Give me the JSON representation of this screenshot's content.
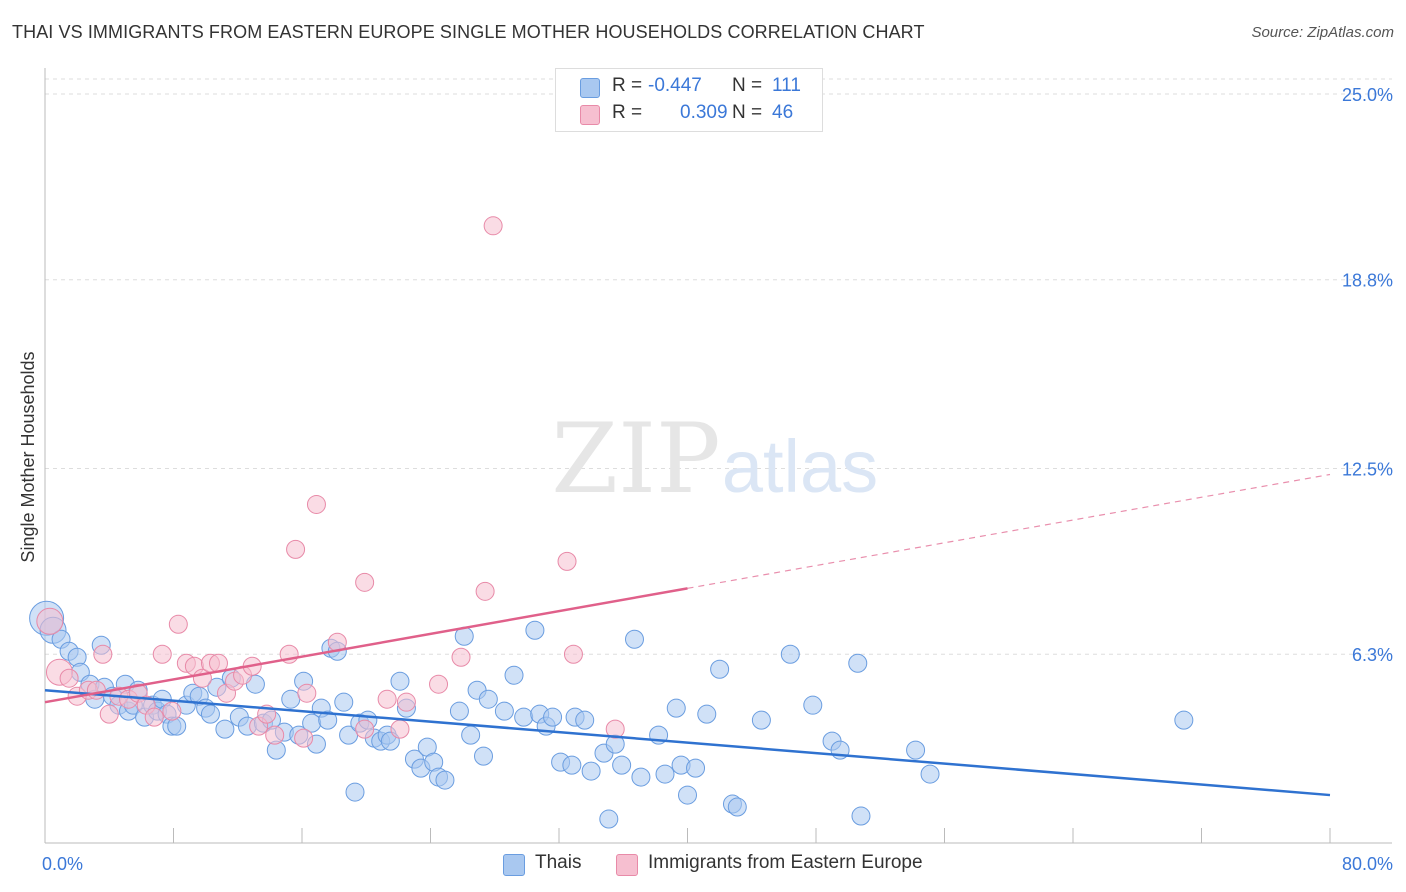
{
  "title": "THAI VS IMMIGRANTS FROM EASTERN EUROPE SINGLE MOTHER HOUSEHOLDS CORRELATION CHART",
  "source": "Source: ZipAtlas.com",
  "watermark": {
    "zip": "ZIP",
    "atlas": "atlas"
  },
  "legend": {
    "rows": [
      {
        "r_label": "R =",
        "r_value": "-0.447",
        "n_label": "N =",
        "n_value": "111"
      },
      {
        "r_label": "R =",
        "r_value": "0.309",
        "n_label": "N =",
        "n_value": "46"
      }
    ]
  },
  "colors": {
    "series_blue_fill": "#a9c8f0",
    "series_blue_stroke": "#6a9de0",
    "trend_blue": "#2f72d0",
    "series_pink_fill": "#f6bfd0",
    "series_pink_stroke": "#e88aa8",
    "trend_pink": "#e0608a",
    "axis_label": "#3b78d8",
    "grid": "#dddddd"
  },
  "chart_data": {
    "type": "scatter",
    "title": "THAI VS IMMIGRANTS FROM EASTERN EUROPE SINGLE MOTHER HOUSEHOLDS CORRELATION CHART",
    "xlabel": "",
    "ylabel": "Single Mother Households",
    "xlim": [
      0,
      80
    ],
    "ylim": [
      0,
      25.5
    ],
    "x_tick_labels": [
      "0.0%",
      "80.0%"
    ],
    "y_ticks": [
      6.3,
      12.5,
      18.8,
      25.0
    ],
    "y_tick_labels": [
      "6.3%",
      "12.5%",
      "18.8%",
      "25.0%"
    ],
    "grid": true,
    "series": [
      {
        "name": "Thais",
        "trend": {
          "x0": 0,
          "y0": 5.1,
          "x1": 80,
          "y1": 1.6
        },
        "points": [
          [
            0.1,
            7.5,
            3
          ],
          [
            0.5,
            7.1,
            2
          ],
          [
            1.0,
            6.8,
            1
          ],
          [
            1.5,
            6.4,
            1
          ],
          [
            2.0,
            6.2,
            1
          ],
          [
            2.2,
            5.7,
            1
          ],
          [
            2.8,
            5.3,
            1
          ],
          [
            3.1,
            4.8,
            1
          ],
          [
            3.5,
            6.6,
            1
          ],
          [
            3.7,
            5.2,
            1
          ],
          [
            4.2,
            4.9,
            1
          ],
          [
            4.6,
            4.6,
            1
          ],
          [
            5.0,
            5.3,
            1
          ],
          [
            5.2,
            4.4,
            1
          ],
          [
            5.5,
            4.6,
            1
          ],
          [
            5.8,
            5.1,
            1
          ],
          [
            6.2,
            4.2,
            1
          ],
          [
            6.7,
            4.6,
            1
          ],
          [
            7.0,
            4.4,
            1
          ],
          [
            7.3,
            4.8,
            1
          ],
          [
            7.6,
            4.3,
            1
          ],
          [
            7.9,
            3.9,
            1
          ],
          [
            8.2,
            3.9,
            1
          ],
          [
            8.8,
            4.6,
            1
          ],
          [
            9.2,
            5.0,
            1
          ],
          [
            9.6,
            4.9,
            1
          ],
          [
            10.0,
            4.5,
            1
          ],
          [
            10.3,
            4.3,
            1
          ],
          [
            10.7,
            5.2,
            1
          ],
          [
            11.2,
            3.8,
            1
          ],
          [
            11.6,
            5.5,
            1
          ],
          [
            12.1,
            4.2,
            1
          ],
          [
            12.6,
            3.9,
            1
          ],
          [
            13.1,
            5.3,
            1
          ],
          [
            13.6,
            4.0,
            1
          ],
          [
            14.1,
            4.1,
            1
          ],
          [
            14.4,
            3.1,
            1
          ],
          [
            14.9,
            3.7,
            1
          ],
          [
            15.3,
            4.8,
            1
          ],
          [
            15.8,
            3.6,
            1
          ],
          [
            16.1,
            5.4,
            1
          ],
          [
            16.6,
            4.0,
            1
          ],
          [
            16.9,
            3.3,
            1
          ],
          [
            17.2,
            4.5,
            1
          ],
          [
            17.6,
            4.1,
            1
          ],
          [
            17.8,
            6.5,
            1
          ],
          [
            18.2,
            6.4,
            1
          ],
          [
            18.6,
            4.7,
            1
          ],
          [
            18.9,
            3.6,
            1
          ],
          [
            19.3,
            1.7,
            1
          ],
          [
            19.6,
            4.0,
            1
          ],
          [
            20.1,
            4.1,
            1
          ],
          [
            20.5,
            3.5,
            1
          ],
          [
            20.9,
            3.4,
            1
          ],
          [
            21.3,
            3.6,
            1
          ],
          [
            21.5,
            3.4,
            1
          ],
          [
            22.1,
            5.4,
            1
          ],
          [
            22.5,
            4.5,
            1
          ],
          [
            23.0,
            2.8,
            1
          ],
          [
            23.4,
            2.5,
            1
          ],
          [
            23.8,
            3.2,
            1
          ],
          [
            24.2,
            2.7,
            1
          ],
          [
            24.5,
            2.2,
            1
          ],
          [
            24.9,
            2.1,
            1
          ],
          [
            25.8,
            4.4,
            1
          ],
          [
            26.1,
            6.9,
            1
          ],
          [
            26.5,
            3.6,
            1
          ],
          [
            26.9,
            5.1,
            1
          ],
          [
            27.3,
            2.9,
            1
          ],
          [
            27.6,
            4.8,
            1
          ],
          [
            28.6,
            4.4,
            1
          ],
          [
            29.2,
            5.6,
            1
          ],
          [
            29.8,
            4.2,
            1
          ],
          [
            30.5,
            7.1,
            1
          ],
          [
            30.8,
            4.3,
            1
          ],
          [
            31.2,
            3.9,
            1
          ],
          [
            31.6,
            4.2,
            1
          ],
          [
            32.1,
            2.7,
            1
          ],
          [
            32.8,
            2.6,
            1
          ],
          [
            33.0,
            4.2,
            1
          ],
          [
            33.6,
            4.1,
            1
          ],
          [
            34.0,
            2.4,
            1
          ],
          [
            34.8,
            3.0,
            1
          ],
          [
            35.1,
            0.8,
            1
          ],
          [
            35.5,
            3.3,
            1
          ],
          [
            35.9,
            2.6,
            1
          ],
          [
            36.7,
            6.8,
            1
          ],
          [
            37.1,
            2.2,
            1
          ],
          [
            38.2,
            3.6,
            1
          ],
          [
            38.6,
            2.3,
            1
          ],
          [
            39.3,
            4.5,
            1
          ],
          [
            39.6,
            2.6,
            1
          ],
          [
            40.0,
            1.6,
            1
          ],
          [
            40.5,
            2.5,
            1
          ],
          [
            41.2,
            4.3,
            1
          ],
          [
            42.0,
            5.8,
            1
          ],
          [
            42.8,
            1.3,
            1
          ],
          [
            43.1,
            1.2,
            1
          ],
          [
            44.6,
            4.1,
            1
          ],
          [
            46.4,
            6.3,
            1
          ],
          [
            47.8,
            4.6,
            1
          ],
          [
            49.0,
            3.4,
            1
          ],
          [
            49.5,
            3.1,
            1
          ],
          [
            50.6,
            6.0,
            1
          ],
          [
            50.8,
            0.9,
            1
          ],
          [
            54.2,
            3.1,
            1
          ],
          [
            55.1,
            2.3,
            1
          ],
          [
            70.9,
            4.1,
            1
          ]
        ]
      },
      {
        "name": "Immigrants from Eastern Europe",
        "trend": {
          "x0": 0,
          "y0": 4.7,
          "x1": 40,
          "y1": 8.5,
          "dashed_to": {
            "x": 80,
            "y": 12.3
          }
        },
        "points": [
          [
            0.3,
            7.4,
            2
          ],
          [
            0.9,
            5.7,
            2
          ],
          [
            1.5,
            5.5,
            1
          ],
          [
            2.0,
            4.9,
            1
          ],
          [
            2.7,
            5.1,
            1
          ],
          [
            3.2,
            5.1,
            1
          ],
          [
            3.6,
            6.3,
            1
          ],
          [
            4.0,
            4.3,
            1
          ],
          [
            4.6,
            4.9,
            1
          ],
          [
            5.2,
            4.8,
            1
          ],
          [
            5.8,
            5.0,
            1
          ],
          [
            6.3,
            4.6,
            1
          ],
          [
            6.8,
            4.2,
            1
          ],
          [
            7.3,
            6.3,
            1
          ],
          [
            7.9,
            4.4,
            1
          ],
          [
            8.3,
            7.3,
            1
          ],
          [
            8.8,
            6.0,
            1
          ],
          [
            9.3,
            5.9,
            1
          ],
          [
            9.8,
            5.5,
            1
          ],
          [
            10.3,
            6.0,
            1
          ],
          [
            10.8,
            6.0,
            1
          ],
          [
            11.3,
            5.0,
            1
          ],
          [
            11.8,
            5.4,
            1
          ],
          [
            12.3,
            5.6,
            1
          ],
          [
            12.9,
            5.9,
            1
          ],
          [
            13.3,
            3.9,
            1
          ],
          [
            13.8,
            4.3,
            1
          ],
          [
            14.3,
            3.6,
            1
          ],
          [
            15.2,
            6.3,
            1
          ],
          [
            15.6,
            9.8,
            1
          ],
          [
            16.1,
            3.5,
            1
          ],
          [
            16.3,
            5.0,
            1
          ],
          [
            16.9,
            11.3,
            1
          ],
          [
            18.2,
            6.7,
            1
          ],
          [
            19.9,
            3.8,
            1
          ],
          [
            19.9,
            8.7,
            1
          ],
          [
            21.3,
            4.8,
            1
          ],
          [
            22.1,
            3.8,
            1
          ],
          [
            22.5,
            4.7,
            1
          ],
          [
            24.5,
            5.3,
            1
          ],
          [
            25.9,
            6.2,
            1
          ],
          [
            27.4,
            8.4,
            1
          ],
          [
            27.9,
            20.6,
            1
          ],
          [
            32.5,
            9.4,
            1
          ],
          [
            32.9,
            6.3,
            1
          ],
          [
            35.5,
            3.8,
            1
          ]
        ]
      }
    ]
  },
  "bottom_legend": [
    "Thais",
    "Immigrants from Eastern Europe"
  ]
}
